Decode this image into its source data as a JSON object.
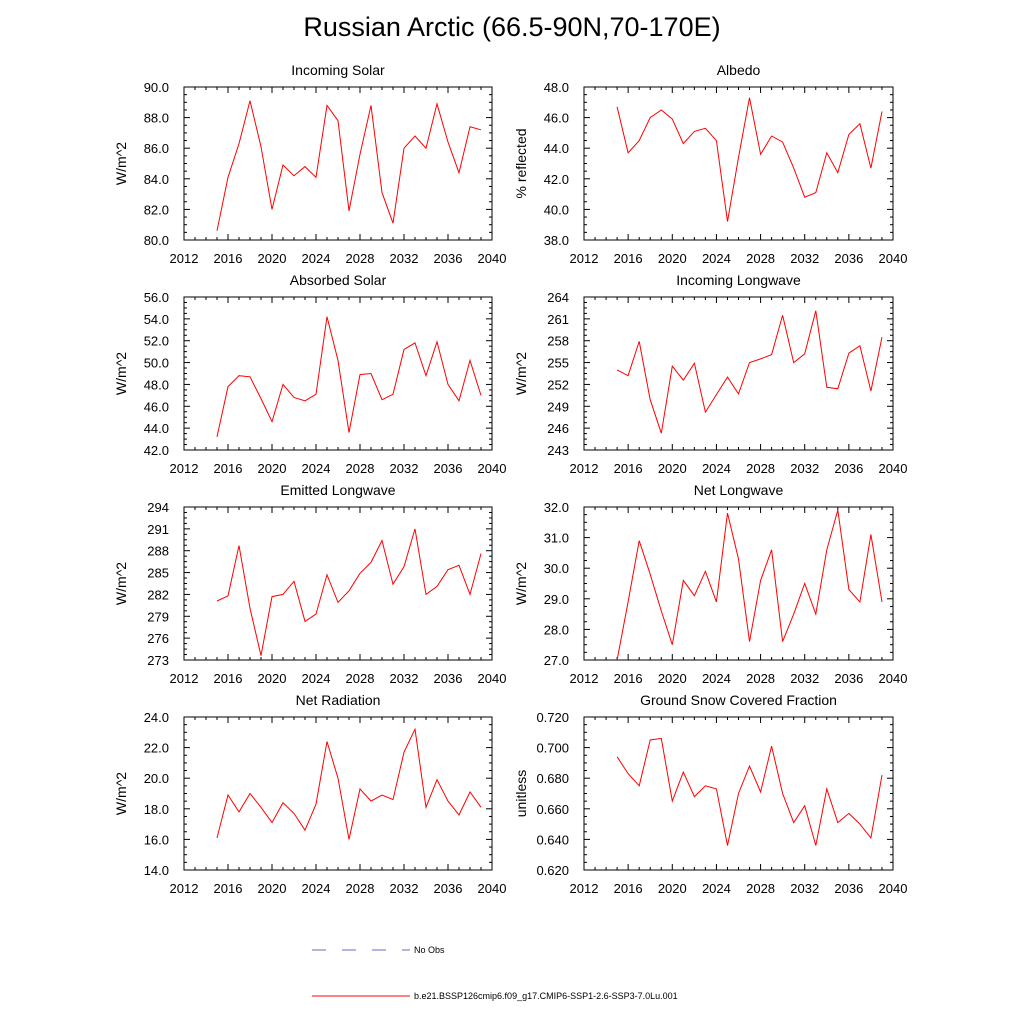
{
  "figure_title": "Russian Arctic (66.5-90N,70-170E)",
  "chart_data": [
    {
      "type": "line",
      "title": "Incoming Solar",
      "ylabel": "W/m^2",
      "xlim": [
        2012,
        2040
      ],
      "ylim": [
        80,
        90
      ],
      "xticks": [
        "2012",
        "2016",
        "2020",
        "2024",
        "2028",
        "2032",
        "2036",
        "2040"
      ],
      "yticks": [
        "80.0",
        "82.0",
        "84.0",
        "86.0",
        "88.0",
        "90.0"
      ],
      "x": [
        2015,
        2016,
        2017,
        2018,
        2019,
        2020,
        2021,
        2022,
        2023,
        2024,
        2025,
        2026,
        2027,
        2028,
        2029,
        2030,
        2031,
        2032,
        2033,
        2034,
        2035,
        2036,
        2037,
        2038,
        2039
      ],
      "series": [
        {
          "values": [
            80.6,
            84.1,
            86.3,
            89.1,
            86.1,
            82.0,
            84.9,
            84.2,
            84.8,
            84.1,
            88.8,
            87.8,
            81.9,
            85.6,
            88.8,
            83.1,
            81.1,
            86.0,
            86.8,
            86.0,
            88.9,
            86.4,
            84.4,
            87.4,
            87.2
          ]
        }
      ]
    },
    {
      "type": "line",
      "title": "Albedo",
      "ylabel": "% reflected",
      "xlim": [
        2012,
        2040
      ],
      "ylim": [
        38,
        48
      ],
      "xticks": [
        "2012",
        "2016",
        "2020",
        "2024",
        "2028",
        "2032",
        "2036",
        "2040"
      ],
      "yticks": [
        "38.0",
        "40.0",
        "42.0",
        "44.0",
        "46.0",
        "48.0"
      ],
      "x": [
        2015,
        2016,
        2017,
        2018,
        2019,
        2020,
        2021,
        2022,
        2023,
        2024,
        2025,
        2026,
        2027,
        2028,
        2029,
        2030,
        2031,
        2032,
        2033,
        2034,
        2035,
        2036,
        2037,
        2038,
        2039
      ],
      "series": [
        {
          "values": [
            46.7,
            43.7,
            44.5,
            46.0,
            46.5,
            45.9,
            44.3,
            45.1,
            45.3,
            44.5,
            39.2,
            43.4,
            47.3,
            43.6,
            44.8,
            44.4,
            42.7,
            40.8,
            41.1,
            43.7,
            42.4,
            44.9,
            45.6,
            42.7,
            46.4
          ]
        }
      ]
    },
    {
      "type": "line",
      "title": "Absorbed Solar",
      "ylabel": "W/m^2",
      "xlim": [
        2012,
        2040
      ],
      "ylim": [
        42,
        56
      ],
      "xticks": [
        "2012",
        "2016",
        "2020",
        "2024",
        "2028",
        "2032",
        "2036",
        "2040"
      ],
      "yticks": [
        "42.0",
        "44.0",
        "46.0",
        "48.0",
        "50.0",
        "52.0",
        "54.0",
        "56.0"
      ],
      "x": [
        2015,
        2016,
        2017,
        2018,
        2019,
        2020,
        2021,
        2022,
        2023,
        2024,
        2025,
        2026,
        2027,
        2028,
        2029,
        2030,
        2031,
        2032,
        2033,
        2034,
        2035,
        2036,
        2037,
        2038,
        2039
      ],
      "series": [
        {
          "values": [
            43.2,
            47.8,
            48.8,
            48.7,
            46.7,
            44.6,
            48.0,
            46.8,
            46.5,
            47.1,
            54.2,
            50.2,
            43.6,
            48.9,
            49.0,
            46.6,
            47.1,
            51.2,
            51.8,
            48.8,
            51.9,
            48.0,
            46.5,
            50.2,
            47.0
          ]
        }
      ]
    },
    {
      "type": "line",
      "title": "Incoming Longwave",
      "ylabel": "W/m^2",
      "xlim": [
        2012,
        2040
      ],
      "ylim": [
        243,
        264
      ],
      "xticks": [
        "2012",
        "2016",
        "2020",
        "2024",
        "2028",
        "2032",
        "2036",
        "2040"
      ],
      "yticks": [
        "243",
        "246",
        "249",
        "252",
        "255",
        "258",
        "261",
        "264"
      ],
      "x": [
        2015,
        2016,
        2017,
        2018,
        2019,
        2020,
        2021,
        2022,
        2023,
        2024,
        2025,
        2026,
        2027,
        2028,
        2029,
        2030,
        2031,
        2032,
        2033,
        2034,
        2035,
        2036,
        2037,
        2038,
        2039
      ],
      "series": [
        {
          "values": [
            254.0,
            253.2,
            257.9,
            249.9,
            245.3,
            254.5,
            252.6,
            254.9,
            248.2,
            250.6,
            253.0,
            250.7,
            255.0,
            255.5,
            256.1,
            261.5,
            255.0,
            256.2,
            262.1,
            251.6,
            251.4,
            256.3,
            257.3,
            251.1,
            258.5
          ]
        }
      ]
    },
    {
      "type": "line",
      "title": "Emitted Longwave",
      "ylabel": "W/m^2",
      "xlim": [
        2012,
        2040
      ],
      "ylim": [
        273,
        294
      ],
      "xticks": [
        "2012",
        "2016",
        "2020",
        "2024",
        "2028",
        "2032",
        "2036",
        "2040"
      ],
      "yticks": [
        "273",
        "276",
        "279",
        "282",
        "285",
        "288",
        "291",
        "294"
      ],
      "x": [
        2015,
        2016,
        2017,
        2018,
        2019,
        2020,
        2021,
        2022,
        2023,
        2024,
        2025,
        2026,
        2027,
        2028,
        2029,
        2030,
        2031,
        2032,
        2033,
        2034,
        2035,
        2036,
        2037,
        2038,
        2039
      ],
      "series": [
        {
          "values": [
            281.1,
            281.8,
            288.7,
            280.1,
            273.6,
            281.7,
            282.0,
            283.8,
            278.3,
            279.3,
            284.7,
            280.9,
            282.5,
            284.9,
            286.4,
            289.4,
            283.4,
            285.8,
            291.0,
            282.0,
            283.1,
            285.4,
            286.0,
            282.0,
            287.6
          ]
        }
      ]
    },
    {
      "type": "line",
      "title": "Net Longwave",
      "ylabel": "W/m^2",
      "xlim": [
        2012,
        2040
      ],
      "ylim": [
        27,
        32
      ],
      "xticks": [
        "2012",
        "2016",
        "2020",
        "2024",
        "2028",
        "2032",
        "2036",
        "2040"
      ],
      "yticks": [
        "27.0",
        "28.0",
        "29.0",
        "30.0",
        "31.0",
        "32.0"
      ],
      "x": [
        2015,
        2016,
        2017,
        2018,
        2019,
        2020,
        2021,
        2022,
        2023,
        2024,
        2025,
        2026,
        2027,
        2028,
        2029,
        2030,
        2031,
        2032,
        2033,
        2034,
        2035,
        2036,
        2037,
        2038,
        2039
      ],
      "series": [
        {
          "values": [
            27.0,
            28.9,
            30.9,
            29.8,
            28.6,
            27.5,
            29.6,
            29.1,
            29.9,
            28.9,
            31.8,
            30.3,
            27.6,
            29.6,
            30.6,
            27.6,
            28.5,
            29.5,
            28.5,
            30.6,
            31.9,
            29.3,
            28.9,
            31.1,
            28.9
          ]
        }
      ]
    },
    {
      "type": "line",
      "title": "Net Radiation",
      "ylabel": "W/m^2",
      "xlim": [
        2012,
        2040
      ],
      "ylim": [
        14,
        24
      ],
      "xticks": [
        "2012",
        "2016",
        "2020",
        "2024",
        "2028",
        "2032",
        "2036",
        "2040"
      ],
      "yticks": [
        "14.0",
        "16.0",
        "18.0",
        "20.0",
        "22.0",
        "24.0"
      ],
      "x": [
        2015,
        2016,
        2017,
        2018,
        2019,
        2020,
        2021,
        2022,
        2023,
        2024,
        2025,
        2026,
        2027,
        2028,
        2029,
        2030,
        2031,
        2032,
        2033,
        2034,
        2035,
        2036,
        2037,
        2038,
        2039
      ],
      "series": [
        {
          "values": [
            16.1,
            18.9,
            17.8,
            19.0,
            18.1,
            17.1,
            18.4,
            17.7,
            16.6,
            18.3,
            22.4,
            20.0,
            16.0,
            19.3,
            18.5,
            18.9,
            18.6,
            21.7,
            23.2,
            18.1,
            19.9,
            18.5,
            17.6,
            19.1,
            18.1
          ]
        }
      ]
    },
    {
      "type": "line",
      "title": "Ground Snow Covered Fraction",
      "ylabel": "unitless",
      "xlim": [
        2012,
        2040
      ],
      "ylim": [
        0.62,
        0.72
      ],
      "xticks": [
        "2012",
        "2016",
        "2020",
        "2024",
        "2028",
        "2032",
        "2036",
        "2040"
      ],
      "yticks": [
        "0.620",
        "0.640",
        "0.660",
        "0.680",
        "0.700",
        "0.720"
      ],
      "x": [
        2015,
        2016,
        2017,
        2018,
        2019,
        2020,
        2021,
        2022,
        2023,
        2024,
        2025,
        2026,
        2027,
        2028,
        2029,
        2030,
        2031,
        2032,
        2033,
        2034,
        2035,
        2036,
        2037,
        2038,
        2039
      ],
      "series": [
        {
          "values": [
            0.694,
            0.683,
            0.675,
            0.705,
            0.706,
            0.665,
            0.684,
            0.668,
            0.675,
            0.673,
            0.636,
            0.67,
            0.688,
            0.671,
            0.701,
            0.67,
            0.651,
            0.662,
            0.636,
            0.673,
            0.651,
            0.657,
            0.65,
            0.641,
            0.682
          ]
        }
      ]
    }
  ],
  "legend": [
    {
      "label": "No Obs",
      "color": "#6a6acd",
      "dash": true
    },
    {
      "label": "b.e21.BSSP126cmip6.f09_g17.CMIP6-SSP1-2.6-SSP3-7.0Lu.001",
      "color": "#ff0000",
      "dash": false
    }
  ],
  "line_color": "#ff0000"
}
